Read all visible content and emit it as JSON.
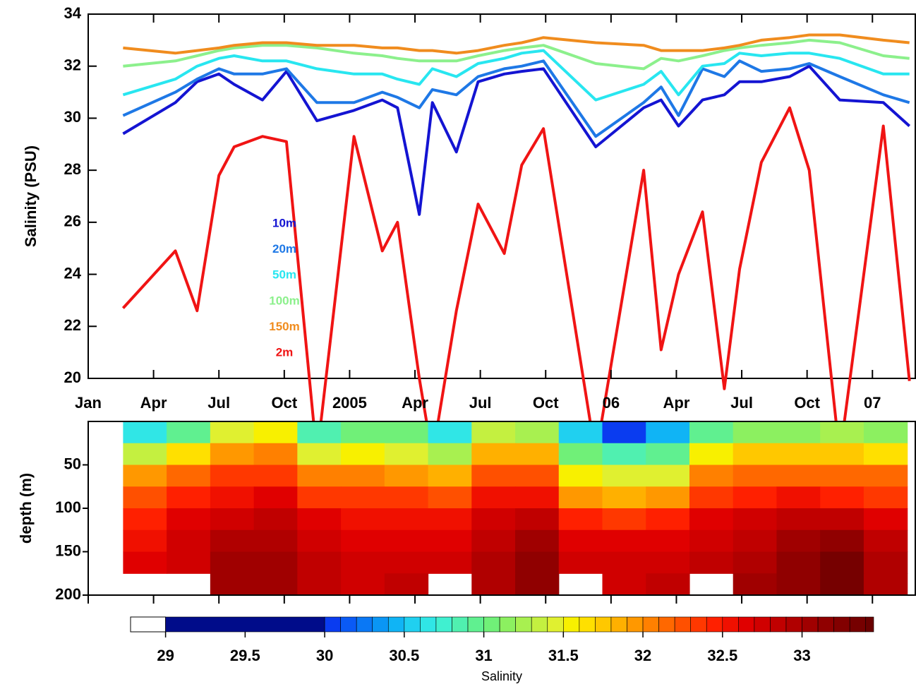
{
  "chart_data": [
    {
      "type": "line",
      "y_label": "Salinity (PSU)",
      "x": [
        1.6,
        4.0,
        5.0,
        6.0,
        6.7,
        8.0,
        9.1,
        10.5,
        12.2,
        13.5,
        14.2,
        15.2,
        15.8,
        16.9,
        17.9,
        19.1,
        19.9,
        20.9,
        23.3,
        25.5,
        26.3,
        27.1,
        28.2,
        29.2,
        29.9,
        30.9,
        32.2,
        33.1,
        34.5,
        36.5,
        37.7
      ],
      "xlim": [
        0,
        38
      ],
      "xticks": [
        {
          "value": 0,
          "label": "Jan"
        },
        {
          "value": 3,
          "label": "Apr"
        },
        {
          "value": 6,
          "label": "Jul"
        },
        {
          "value": 9,
          "label": "Oct"
        },
        {
          "value": 12,
          "label": "2005"
        },
        {
          "value": 15,
          "label": "Apr"
        },
        {
          "value": 18,
          "label": "Jul"
        },
        {
          "value": 21,
          "label": "Oct"
        },
        {
          "value": 24,
          "label": "06"
        },
        {
          "value": 27,
          "label": "Apr"
        },
        {
          "value": 30,
          "label": "Jul"
        },
        {
          "value": 33,
          "label": "Oct"
        },
        {
          "value": 36,
          "label": "07"
        }
      ],
      "ylim": [
        20,
        34
      ],
      "yticks": [
        20,
        22,
        24,
        26,
        28,
        30,
        32,
        34
      ],
      "series": [
        {
          "name": "10m",
          "color": "#1414d2",
          "values": [
            29.4,
            30.6,
            31.4,
            31.7,
            31.3,
            30.7,
            31.8,
            29.9,
            30.3,
            30.7,
            30.4,
            26.3,
            30.6,
            28.7,
            31.4,
            31.7,
            31.8,
            31.9,
            28.9,
            30.4,
            30.7,
            29.7,
            30.7,
            30.9,
            31.4,
            31.4,
            31.6,
            32.0,
            30.7,
            30.6,
            29.7
          ]
        },
        {
          "name": "20m",
          "color": "#1e78e6",
          "values": [
            30.1,
            31.0,
            31.5,
            31.9,
            31.7,
            31.7,
            31.9,
            30.6,
            30.6,
            31.0,
            30.8,
            30.4,
            31.1,
            30.9,
            31.6,
            31.9,
            32.0,
            32.2,
            29.3,
            30.6,
            31.2,
            30.1,
            31.9,
            31.6,
            32.2,
            31.8,
            31.9,
            32.1,
            31.6,
            30.9,
            30.6
          ]
        },
        {
          "name": "50m",
          "color": "#28e6f0",
          "values": [
            30.9,
            31.5,
            32.0,
            32.3,
            32.4,
            32.2,
            32.2,
            31.9,
            31.7,
            31.7,
            31.5,
            31.3,
            31.9,
            31.6,
            32.1,
            32.3,
            32.5,
            32.6,
            30.7,
            31.3,
            31.8,
            30.9,
            32.0,
            32.1,
            32.5,
            32.4,
            32.5,
            32.5,
            32.3,
            31.7,
            31.7
          ]
        },
        {
          "name": "100m",
          "color": "#8cf08c",
          "values": [
            32.0,
            32.2,
            32.4,
            32.6,
            32.7,
            32.8,
            32.8,
            32.7,
            32.5,
            32.4,
            32.3,
            32.2,
            32.2,
            32.2,
            32.4,
            32.6,
            32.7,
            32.8,
            32.1,
            31.9,
            32.3,
            32.2,
            32.4,
            32.6,
            32.7,
            32.8,
            32.9,
            33.0,
            32.9,
            32.4,
            32.3
          ]
        },
        {
          "name": "150m",
          "color": "#f08c1e",
          "values": [
            32.7,
            32.5,
            32.6,
            32.7,
            32.8,
            32.9,
            32.9,
            32.8,
            32.8,
            32.7,
            32.7,
            32.6,
            32.6,
            32.5,
            32.6,
            32.8,
            32.9,
            33.1,
            32.9,
            32.8,
            32.6,
            32.6,
            32.6,
            32.7,
            32.8,
            33.0,
            33.1,
            33.2,
            33.2,
            33.0,
            32.9
          ]
        },
        {
          "name": "2m",
          "color": "#f01414",
          "values": [
            22.7,
            24.9,
            22.6,
            27.8,
            28.9,
            29.3,
            29.1,
            17,
            29.3,
            24.9,
            26.0,
            20,
            17,
            22.6,
            26.7,
            24.8,
            28.2,
            29.6,
            17,
            28.0,
            21.1,
            24.0,
            26.4,
            19.6,
            24.2,
            28.3,
            30.4,
            28.0,
            17,
            29.7,
            19.9
          ]
        }
      ]
    },
    {
      "type": "heatmap",
      "y_label": "depth (m)",
      "x": [
        2.6,
        4.6,
        6.6,
        8.6,
        10.6,
        12.6,
        14.6,
        16.6,
        18.6,
        20.6,
        22.6,
        24.6,
        26.6,
        28.6,
        30.6,
        32.6,
        34.6,
        36.6
      ],
      "y": [
        12.5,
        37.5,
        62.5,
        87.5,
        112.5,
        137.5,
        162.5,
        187.5
      ],
      "ylim": [
        0,
        200
      ],
      "yticks": [
        50,
        100,
        150,
        200
      ],
      "values": [
        [
          30.6,
          30.9,
          31.4,
          31.5,
          30.8,
          31.0,
          31.0,
          30.6,
          31.3,
          31.2,
          30.5,
          30.0,
          30.4,
          30.9,
          31.1,
          31.1,
          31.2,
          31.1
        ],
        [
          31.3,
          31.6,
          31.9,
          32.0,
          31.4,
          31.5,
          31.4,
          31.2,
          31.8,
          31.8,
          31.0,
          30.8,
          30.9,
          31.5,
          31.7,
          31.7,
          31.7,
          31.6
        ],
        [
          31.9,
          32.1,
          32.3,
          32.3,
          32.0,
          32.0,
          31.9,
          31.8,
          32.2,
          32.2,
          31.5,
          31.4,
          31.4,
          32.0,
          32.1,
          32.1,
          32.1,
          32.1
        ],
        [
          32.2,
          32.4,
          32.5,
          32.6,
          32.3,
          32.3,
          32.3,
          32.2,
          32.5,
          32.5,
          31.9,
          31.8,
          31.9,
          32.3,
          32.4,
          32.5,
          32.4,
          32.3
        ],
        [
          32.4,
          32.6,
          32.7,
          32.8,
          32.6,
          32.5,
          32.5,
          32.5,
          32.7,
          32.8,
          32.4,
          32.3,
          32.4,
          32.6,
          32.7,
          32.8,
          32.8,
          32.6
        ],
        [
          32.5,
          32.7,
          32.9,
          32.9,
          32.7,
          32.6,
          32.6,
          32.6,
          32.8,
          33.0,
          32.6,
          32.6,
          32.6,
          32.7,
          32.8,
          33.0,
          33.1,
          32.8
        ],
        [
          32.6,
          32.7,
          33.0,
          33.0,
          32.8,
          32.7,
          32.7,
          32.7,
          32.9,
          33.1,
          32.7,
          32.7,
          32.7,
          32.8,
          32.9,
          33.1,
          33.3,
          32.9
        ],
        [
          null,
          null,
          33.0,
          33.0,
          32.8,
          32.7,
          32.8,
          null,
          32.9,
          33.1,
          null,
          32.7,
          32.8,
          null,
          33.0,
          33.1,
          33.3,
          32.9
        ]
      ],
      "colorbar": {
        "label": "Salinity",
        "clim": [
          28.78,
          33.45
        ],
        "ticks": [
          29,
          29.5,
          30,
          30.5,
          31,
          31.5,
          32,
          32.5,
          33
        ],
        "below_color": "#ffffff",
        "levels": [
          29,
          30,
          30.1,
          30.2,
          30.3,
          30.4,
          30.5,
          30.6,
          30.7,
          30.8,
          30.9,
          31,
          31.1,
          31.2,
          31.3,
          31.4,
          31.5,
          31.6,
          31.7,
          31.8,
          31.9,
          32,
          32.1,
          32.2,
          32.3,
          32.4,
          32.5,
          32.6,
          32.7,
          32.8,
          32.9,
          33,
          33.1,
          33.2,
          33.3,
          33.4
        ],
        "colors": [
          "#000c8a",
          "#0a3cf0",
          "#0a5af5",
          "#0a78f5",
          "#0a96f5",
          "#10b4f5",
          "#20d0f0",
          "#30e6e6",
          "#40f0d0",
          "#50f0b0",
          "#60f090",
          "#70f078",
          "#8cf060",
          "#a8f050",
          "#c4f040",
          "#e0f030",
          "#f8f000",
          "#ffe000",
          "#ffc800",
          "#ffb000",
          "#ff9800",
          "#ff8000",
          "#ff6800",
          "#ff5000",
          "#ff3800",
          "#ff2000",
          "#f01000",
          "#e00000",
          "#d00000",
          "#c00000",
          "#b00000",
          "#a00000",
          "#900000",
          "#820000",
          "#760000",
          "#6a0000"
        ]
      }
    }
  ]
}
